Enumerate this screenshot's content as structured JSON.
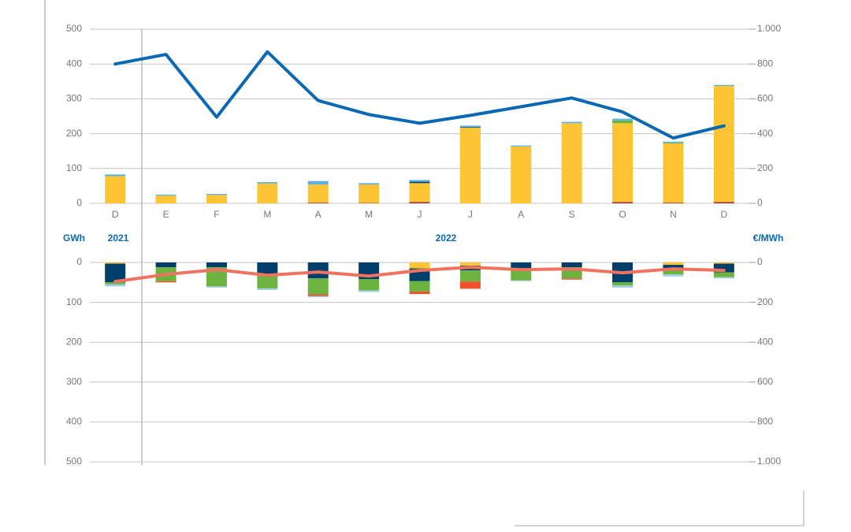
{
  "chart_data": [
    {
      "type": "bar",
      "categories": [
        "D",
        "E",
        "F",
        "M",
        "A",
        "M",
        "J",
        "J",
        "A",
        "S",
        "O",
        "N",
        "D"
      ],
      "series": [
        {
          "color": "#a8322d",
          "values": [
            0,
            0,
            0,
            0,
            2,
            1,
            4,
            0,
            0,
            0,
            4,
            2,
            4
          ]
        },
        {
          "color": "#fdc533",
          "values": [
            78,
            22,
            24,
            57,
            52,
            53,
            54,
            217,
            163,
            230,
            226,
            170,
            333
          ]
        },
        {
          "color": "#003f6b",
          "values": [
            0,
            0,
            0,
            0,
            0,
            0,
            4,
            2,
            0,
            0,
            0,
            0,
            0
          ]
        },
        {
          "color": "#6db33f",
          "values": [
            0,
            0,
            0,
            0,
            0,
            0,
            0,
            0,
            0,
            0,
            8,
            2,
            0
          ]
        },
        {
          "color": "#5fb2e0",
          "values": [
            5,
            3,
            3,
            4,
            10,
            4,
            5,
            4,
            3,
            4,
            5,
            3,
            3
          ]
        },
        {
          "type": "line",
          "axis": "y2",
          "color": "#0a68b4",
          "values": [
            800,
            855,
            495,
            870,
            590,
            510,
            460,
            505,
            555,
            605,
            525,
            375,
            445
          ]
        }
      ],
      "ylim": [
        0,
        500
      ],
      "yticks": [
        0,
        100,
        200,
        300,
        400,
        500
      ],
      "y2lim": [
        0,
        1000
      ],
      "y2ticks": [
        0,
        200,
        400,
        600,
        800,
        {
          "value": 1000,
          "label": "1.000"
        }
      ],
      "grid": true
    },
    {
      "type": "bar",
      "ylabel": "GWh",
      "y2label": "€/MWh",
      "year_labels": [
        "2021",
        "2022"
      ],
      "inverted_y": true,
      "series": [
        {
          "color": "#fdc533",
          "values": [
            3,
            0,
            0,
            0,
            0,
            0,
            15,
            8,
            0,
            0,
            0,
            6,
            3
          ]
        },
        {
          "color": "#003f6b",
          "values": [
            47,
            12,
            12,
            30,
            40,
            42,
            32,
            12,
            15,
            12,
            50,
            12,
            22
          ]
        },
        {
          "color": "#6db33f",
          "values": [
            5,
            35,
            48,
            35,
            40,
            28,
            26,
            28,
            30,
            28,
            8,
            12,
            12
          ]
        },
        {
          "color": "#f0502d",
          "values": [
            0,
            3,
            0,
            0,
            4,
            0,
            6,
            18,
            0,
            3,
            0,
            0,
            0
          ]
        },
        {
          "color": "#9fcde8",
          "values": [
            5,
            0,
            3,
            4,
            3,
            4,
            0,
            0,
            2,
            0,
            5,
            5,
            3
          ]
        },
        {
          "type": "line",
          "axis": "y2",
          "color": "#f07360",
          "values": [
            96,
            60,
            36,
            64,
            48,
            68,
            40,
            24,
            36,
            32,
            52,
            32,
            40
          ]
        }
      ],
      "ylim": [
        0,
        500
      ],
      "yticks": [
        0,
        100,
        200,
        300,
        400,
        500
      ],
      "y2lim": [
        0,
        1000
      ],
      "y2ticks": [
        0,
        200,
        400,
        600,
        800,
        {
          "value": 1000,
          "label": "1.000"
        }
      ],
      "grid": true
    }
  ]
}
